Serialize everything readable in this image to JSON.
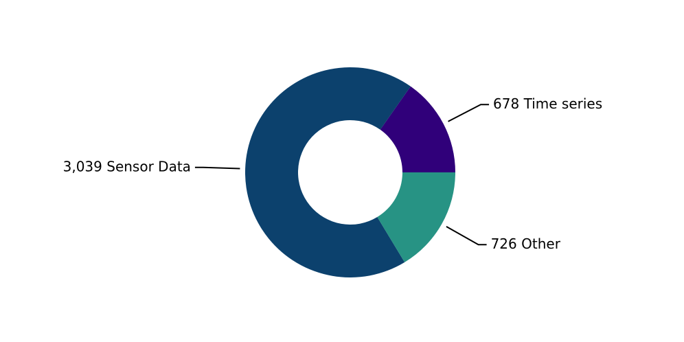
{
  "chart_data": {
    "type": "donut",
    "categories": [
      "Time series",
      "Sensor Data",
      "Other"
    ],
    "values": [
      678,
      3039,
      726
    ],
    "value_labels": [
      "678",
      "3,039",
      "726"
    ],
    "colors": [
      "#30007a",
      "#0c416d",
      "#279384"
    ]
  }
}
